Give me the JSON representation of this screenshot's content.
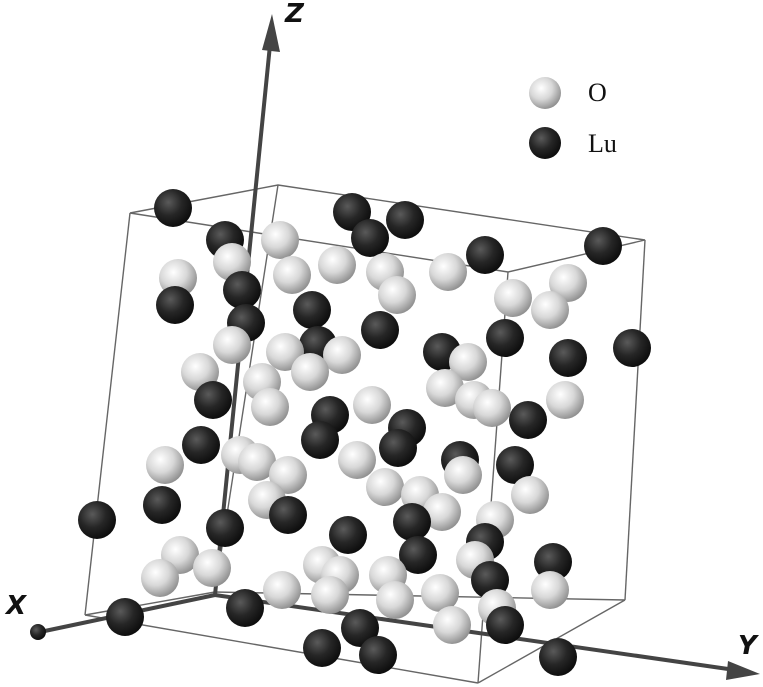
{
  "axes": {
    "x": "X",
    "y": "Y",
    "z": "Z"
  },
  "legend": [
    {
      "label": "O"
    },
    {
      "label": "Lu"
    }
  ]
}
